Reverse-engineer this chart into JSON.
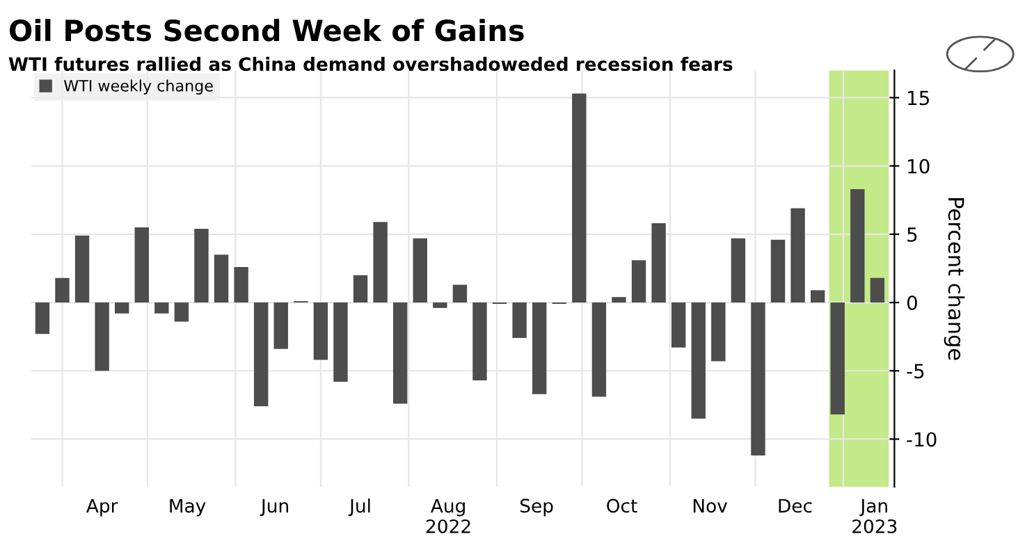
{
  "chart_data": {
    "type": "bar",
    "title": "Oil Posts Second Week of Gains",
    "subtitle": "WTI futures rallied as China demand overshadoweded recession fears",
    "ylabel": "Percent change",
    "x": [
      "2022-03-25",
      "2022-04-01",
      "2022-04-08",
      "2022-04-15",
      "2022-04-22",
      "2022-04-29",
      "2022-05-06",
      "2022-05-13",
      "2022-05-20",
      "2022-05-27",
      "2022-06-03",
      "2022-06-10",
      "2022-06-17",
      "2022-06-24",
      "2022-07-01",
      "2022-07-08",
      "2022-07-15",
      "2022-07-22",
      "2022-07-29",
      "2022-08-05",
      "2022-08-12",
      "2022-08-19",
      "2022-08-26",
      "2022-09-02",
      "2022-09-09",
      "2022-09-16",
      "2022-09-23",
      "2022-09-30",
      "2022-10-07",
      "2022-10-14",
      "2022-10-21",
      "2022-10-28",
      "2022-11-04",
      "2022-11-11",
      "2022-11-18",
      "2022-11-25",
      "2022-12-02",
      "2022-12-09",
      "2022-12-16",
      "2022-12-23",
      "2022-12-30",
      "2023-01-06",
      "2023-01-13"
    ],
    "series": [
      {
        "name": "WTI weekly change",
        "color": "#4d4d4d",
        "values": [
          -2.3,
          1.8,
          4.9,
          -5.0,
          -0.8,
          5.5,
          -0.8,
          -1.4,
          5.4,
          3.5,
          2.6,
          -7.6,
          -3.4,
          0.1,
          -4.2,
          -5.8,
          2.0,
          5.9,
          -7.4,
          4.7,
          -0.4,
          1.3,
          -5.7,
          -0.1,
          -2.6,
          -6.7,
          -0.1,
          15.3,
          -6.9,
          0.4,
          3.1,
          5.8,
          -3.3,
          -8.5,
          -4.3,
          4.7,
          -11.2,
          4.6,
          6.9,
          0.9,
          -8.2,
          8.3,
          1.8
        ]
      }
    ],
    "xlim": [
      "2022-03-21",
      "2023-01-19"
    ],
    "xticks": [
      {
        "value": "2022-04-01",
        "label": null
      },
      {
        "value": "2022-04-15",
        "label": "Apr"
      },
      {
        "value": "2022-05-01",
        "label": null
      },
      {
        "value": "2022-05-15",
        "label": "May"
      },
      {
        "value": "2022-06-01",
        "label": null
      },
      {
        "value": "2022-06-15",
        "label": "Jun"
      },
      {
        "value": "2022-07-01",
        "label": null
      },
      {
        "value": "2022-07-15",
        "label": "Jul"
      },
      {
        "value": "2022-08-01",
        "label": null
      },
      {
        "value": "2022-08-15",
        "label": "Aug\n2022"
      },
      {
        "value": "2022-09-01",
        "label": null
      },
      {
        "value": "2022-09-15",
        "label": "Sep"
      },
      {
        "value": "2022-10-01",
        "label": null
      },
      {
        "value": "2022-10-15",
        "label": "Oct"
      },
      {
        "value": "2022-11-01",
        "label": null
      },
      {
        "value": "2022-11-15",
        "label": "Nov"
      },
      {
        "value": "2022-12-01",
        "label": null
      },
      {
        "value": "2022-12-15",
        "label": "Dec"
      },
      {
        "value": "2023-01-01",
        "label": null
      },
      {
        "value": "2023-01-12",
        "label": "Jan\n2023"
      }
    ],
    "ylim": [
      -13.5,
      17
    ],
    "yticks": [
      -10,
      -5,
      0,
      5,
      10,
      15
    ],
    "bands": [
      {
        "axis": "x",
        "from": "2022-12-27",
        "to": "2023-01-17",
        "color": "#b5e36b"
      }
    ],
    "grid": true,
    "legend": "top left"
  }
}
